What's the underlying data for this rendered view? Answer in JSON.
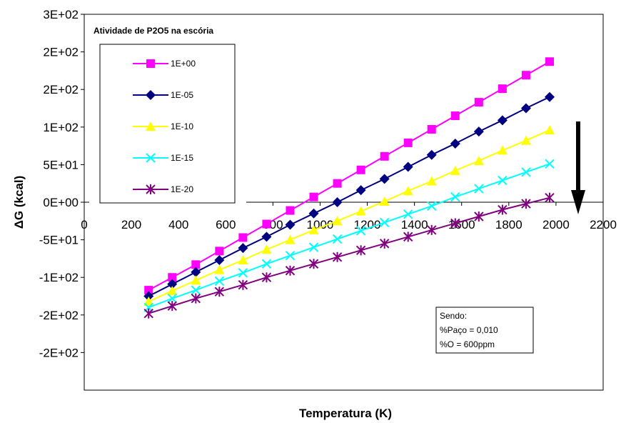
{
  "chart_data": {
    "type": "line",
    "xlabel": "Temperatura (K)",
    "ylabel": "ΔG (kcal)",
    "xlim": [
      0,
      2200
    ],
    "ylim": [
      -250,
      250
    ],
    "x_ticks": [
      "0",
      "200",
      "400",
      "600",
      "800",
      "1000",
      "1200",
      "1400",
      "1600",
      "1800",
      "2000",
      "2200"
    ],
    "x_tick_values": [
      0,
      200,
      400,
      600,
      800,
      1000,
      1200,
      1400,
      1600,
      1800,
      2000,
      2200
    ],
    "y_ticks": [
      "3E+02",
      "2E+02",
      "2E+02",
      "1E+02",
      "5E+01",
      "0E+00",
      "-5E+01",
      "-1E+02",
      "-2E+02",
      "-2E+02"
    ],
    "y_tick_values": [
      250,
      200,
      150,
      100,
      50,
      0,
      -50,
      -100,
      -150,
      -200
    ],
    "grid": false,
    "legend_title": "Atividade de P2O5 na escória",
    "legend_position": "top-left",
    "x": [
      273,
      373,
      473,
      573,
      673,
      773,
      873,
      973,
      1073,
      1173,
      1273,
      1373,
      1473,
      1573,
      1673,
      1773,
      1873,
      1973
    ],
    "series": [
      {
        "name": "1E+00",
        "color": "#FF00FF",
        "marker": "square",
        "values": [
          -117,
          -100,
          -83,
          -65,
          -47,
          -29,
          -11,
          7,
          25,
          43,
          61,
          79,
          97,
          115,
          133,
          151,
          169,
          187
        ]
      },
      {
        "name": "1E-05",
        "color": "#000080",
        "marker": "diamond",
        "values": [
          -125,
          -109,
          -93,
          -77,
          -61,
          -46,
          -30,
          -15,
          0,
          16,
          31,
          47,
          63,
          78,
          94,
          109,
          125,
          140
        ]
      },
      {
        "name": "1E-10",
        "color": "#FFFF00",
        "marker": "triangle",
        "values": [
          -132,
          -118,
          -104,
          -90,
          -77,
          -63,
          -50,
          -37,
          -25,
          -12,
          1,
          15,
          28,
          42,
          55,
          69,
          82,
          96
        ]
      },
      {
        "name": "1E-15",
        "color": "#00FFFF",
        "marker": "x",
        "values": [
          -140,
          -128,
          -117,
          -105,
          -94,
          -82,
          -71,
          -60,
          -49,
          -38,
          -27,
          -16,
          -5,
          7,
          18,
          29,
          40,
          51
        ]
      },
      {
        "name": "1E-20",
        "color": "#800080",
        "marker": "star",
        "values": [
          -148,
          -138,
          -128,
          -119,
          -110,
          -100,
          -91,
          -82,
          -73,
          -64,
          -55,
          -46,
          -37,
          -28,
          -19,
          -10,
          -2,
          6
        ]
      }
    ],
    "annotations": [
      "Sendo:",
      "%Paço = 0,010",
      "%O = 600ppm"
    ]
  }
}
